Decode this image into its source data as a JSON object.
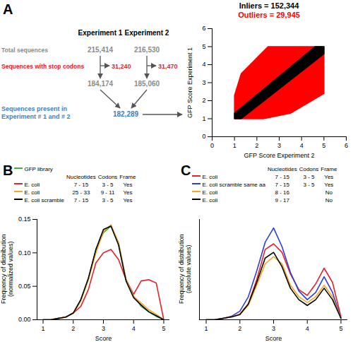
{
  "diagram": {
    "panel": "A",
    "columns": [
      "Experiment 1",
      "Experiment 2"
    ],
    "rows": [
      {
        "label": "Total sequences",
        "color": "#8c8c8c",
        "values": [
          "215,414",
          "216,530"
        ]
      },
      {
        "label": "Sequences with stop codons",
        "color": "#e8202a",
        "values": [
          "31,240",
          "31,470"
        ]
      },
      {
        "color": "#8c8c8c",
        "values": [
          "184,174",
          "185,060"
        ]
      }
    ],
    "result": {
      "label": "Sequences present in\nExperiment # 1 and # 2",
      "value": "182,289",
      "color": "#3d7fc1"
    }
  },
  "chart_data": [
    {
      "type": "scatter",
      "x_label": "GFP Score Experiment 2",
      "y_label": "GFP Score Experiment 1",
      "xlim": [
        0,
        6
      ],
      "ylim": [
        0,
        6
      ],
      "xticks": [
        0,
        1,
        2,
        3,
        4,
        5,
        6
      ],
      "yticks": [
        0,
        1,
        2,
        3,
        4,
        5,
        6
      ],
      "legend": "top",
      "series": [
        {
          "name": "Inliers = 152,344",
          "color": "#000000",
          "type": "area",
          "x": [
            1,
            1.3,
            5,
            5,
            4.6,
            1
          ],
          "y": [
            1,
            1,
            4.6,
            5,
            5,
            1.3
          ]
        },
        {
          "name": "Outliers = 29,945",
          "color": "#ff0000",
          "type": "area",
          "x": [
            1,
            2.3,
            3.5,
            5,
            5,
            2.5,
            1.3,
            1
          ],
          "y": [
            1,
            1,
            1.3,
            2.4,
            5,
            5,
            3.5,
            2.3
          ]
        }
      ]
    },
    {
      "panel": "B",
      "type": "line",
      "x_label": "Score",
      "y_label": "Frequency of distribution\n(normalized values)",
      "x": [
        1,
        1.25,
        1.5,
        1.75,
        2,
        2.25,
        2.5,
        2.75,
        3,
        3.25,
        3.5,
        3.75,
        4,
        4.25,
        4.5,
        4.75,
        5
      ],
      "xlim": [
        0.8,
        5.2
      ],
      "xticks": [
        1,
        2,
        3,
        4,
        5
      ],
      "ylim": [
        0,
        0.15
      ],
      "yticks": [
        {
          "value": 0,
          "label": "0.00"
        },
        {
          "value": 0.05,
          "label": "0.05"
        },
        {
          "value": 0.1,
          "label": "0.10"
        },
        {
          "value": 0.15,
          "label": "0.15"
        }
      ],
      "legend": "top",
      "columns": [
        "Nucleotides",
        "Codons",
        "Frame"
      ],
      "series": [
        {
          "name": "GFP library",
          "color": "#3cb043",
          "values": [
            0,
            0,
            0.002,
            0.004,
            0.01,
            0.03,
            0.06,
            0.105,
            0.13,
            0.14,
            0.115,
            0.06,
            0.035,
            0.02,
            0.012,
            0.005,
            0
          ]
        },
        {
          "name": "E. coli",
          "color": "#e8202a",
          "details": [
            "7 - 15",
            "3 - 5",
            "Yes"
          ],
          "values": [
            0,
            0,
            0.002,
            0.004,
            0.01,
            0.02,
            0.045,
            0.085,
            0.1,
            0.105,
            0.09,
            0.06,
            0.038,
            0.058,
            0.06,
            0.055,
            0
          ]
        },
        {
          "name": "E. coli",
          "color": "#f5a623",
          "details": [
            "25 - 33",
            "9 - 11",
            "Yes"
          ],
          "values": [
            0,
            0,
            0.002,
            0.004,
            0.01,
            0.028,
            0.06,
            0.1,
            0.132,
            0.142,
            0.115,
            0.06,
            0.035,
            0.025,
            0.015,
            0.008,
            0
          ]
        },
        {
          "name": "E. coli scramble",
          "color": "#000000",
          "details": [
            "7 - 15",
            "3 - 5",
            "Yes"
          ],
          "values": [
            0,
            0,
            0.002,
            0.004,
            0.01,
            0.03,
            0.062,
            0.105,
            0.135,
            0.14,
            0.112,
            0.058,
            0.033,
            0.022,
            0.012,
            0.006,
            0
          ]
        }
      ]
    },
    {
      "panel": "C",
      "type": "line",
      "x_label": "Score",
      "y_label": "Frequency of distribution\n(absolute values)",
      "x": [
        1,
        1.25,
        1.5,
        1.75,
        2,
        2.25,
        2.5,
        2.75,
        3,
        3.25,
        3.5,
        3.75,
        4,
        4.25,
        4.5,
        4.75,
        5
      ],
      "xlim": [
        0.8,
        5.2
      ],
      "xticks": [
        1,
        2,
        3,
        4,
        5
      ],
      "ylim": [
        0,
        350
      ],
      "tick_labels": "x",
      "legend": "top",
      "columns": [
        "Nucleotides",
        "Codons",
        "Frame"
      ],
      "series": [
        {
          "name": "E. coli",
          "color": "#e8202a",
          "details": [
            "7 - 15",
            "3 - 5",
            "Yes"
          ],
          "values": [
            0,
            0,
            5,
            10,
            20,
            55,
            140,
            245,
            265,
            235,
            160,
            105,
            85,
            125,
            180,
            130,
            10
          ]
        },
        {
          "name": "E. coli scramble same aa",
          "color": "#2a3fd9",
          "details": [
            "7 - 15",
            "3 - 5",
            "Yes"
          ],
          "values": [
            0,
            0,
            5,
            12,
            30,
            80,
            170,
            270,
            320,
            255,
            165,
            100,
            70,
            95,
            150,
            95,
            5
          ]
        },
        {
          "name": "E. coli",
          "color": "#f5a623",
          "details": [
            "8 - 16",
            "",
            "No"
          ],
          "values": [
            0,
            0,
            5,
            10,
            20,
            50,
            120,
            195,
            220,
            195,
            120,
            80,
            60,
            80,
            120,
            80,
            5
          ]
        },
        {
          "name": "E. coli",
          "color": "#000000",
          "details": [
            "9 - 17",
            "",
            "No"
          ],
          "values": [
            0,
            0,
            5,
            10,
            18,
            55,
            130,
            215,
            235,
            185,
            110,
            70,
            50,
            70,
            110,
            70,
            5
          ]
        }
      ]
    }
  ]
}
